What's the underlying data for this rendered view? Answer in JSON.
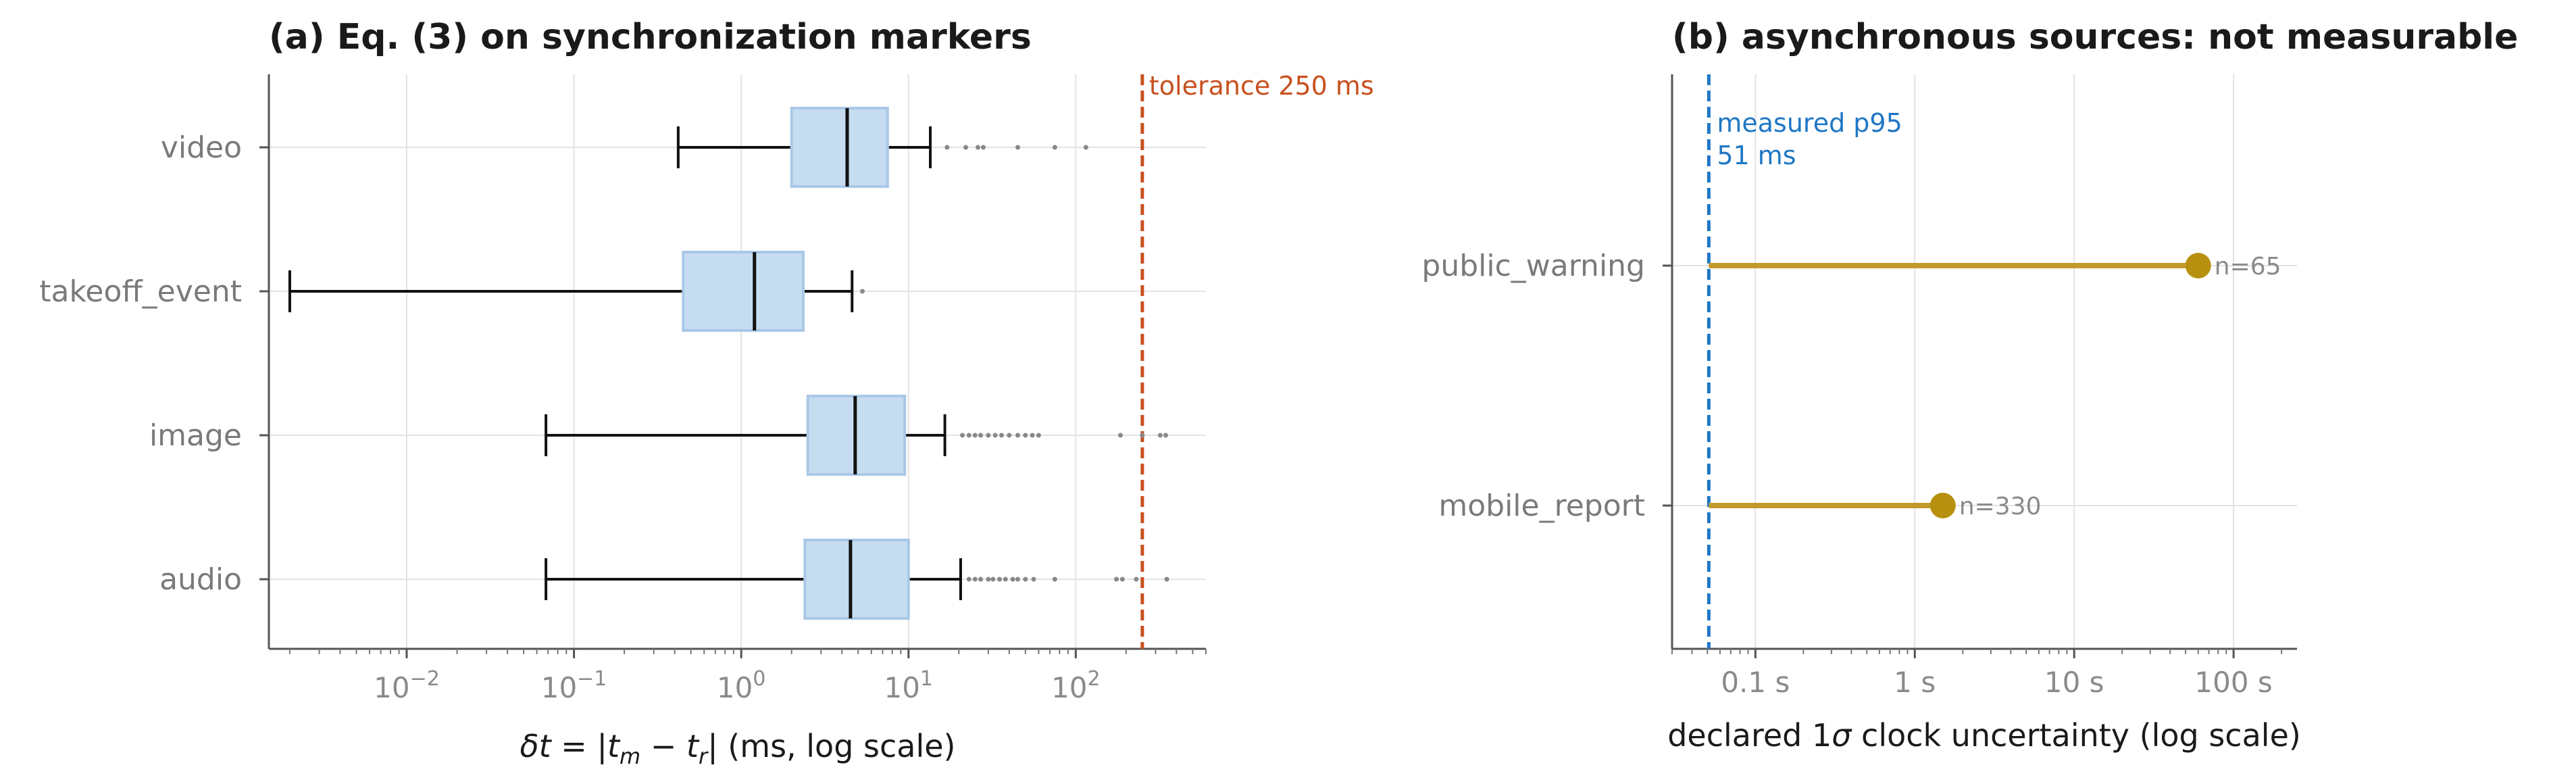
{
  "chart_data": [
    {
      "type": "box",
      "title": "(a) Eq. (3) on synchronization markers",
      "xlabel_parts": [
        "δt",
        " = |",
        "t",
        "m",
        " − ",
        "t",
        "r",
        "|  (ms, log scale)"
      ],
      "xscale": "log",
      "xlim": [
        0.0015,
        600
      ],
      "xticks": [
        {
          "value": 0.01,
          "mantissa": "10",
          "exp": "−2"
        },
        {
          "value": 0.1,
          "mantissa": "10",
          "exp": "−1"
        },
        {
          "value": 1,
          "mantissa": "10",
          "exp": "0"
        },
        {
          "value": 10,
          "mantissa": "10",
          "exp": "1"
        },
        {
          "value": 100,
          "mantissa": "10",
          "exp": "2"
        }
      ],
      "grid": true,
      "categories": [
        "video",
        "takeoff_event",
        "image",
        "audio"
      ],
      "boxes": [
        {
          "name": "video",
          "whislo": 0.42,
          "q1": 2.0,
          "median": 4.3,
          "q3": 7.5,
          "whishi": 13.5,
          "fliers": [
            17,
            22,
            26,
            28,
            45,
            75,
            115
          ]
        },
        {
          "name": "takeoff_event",
          "whislo": 0.002,
          "q1": 0.45,
          "median": 1.2,
          "q3": 2.35,
          "whishi": 4.6,
          "fliers": [
            5.3
          ]
        },
        {
          "name": "image",
          "whislo": 0.068,
          "q1": 2.5,
          "median": 4.8,
          "q3": 9.5,
          "whishi": 16.5,
          "fliers": [
            21,
            23,
            25,
            27,
            30,
            33,
            36,
            40,
            45,
            50,
            55,
            60,
            185,
            250,
            320,
            345
          ]
        },
        {
          "name": "audio",
          "whislo": 0.068,
          "q1": 2.4,
          "median": 4.5,
          "q3": 10.0,
          "whishi": 20.5,
          "fliers": [
            23,
            25,
            27,
            30,
            32,
            35,
            38,
            42,
            45,
            50,
            56,
            75,
            175,
            190,
            230,
            350
          ]
        }
      ],
      "reference_line": {
        "x": 250,
        "label": "tolerance 250 ms",
        "color": "#c8501e"
      },
      "box_color": "#c6dcf0"
    },
    {
      "type": "dot_line",
      "title": "(b) asynchronous sources: not measurable",
      "xlabel_parts": [
        "declared 1",
        "σ",
        " clock uncertainty (log scale)"
      ],
      "xscale": "log",
      "xlim": [
        0.03,
        250
      ],
      "xticks": [
        {
          "value": 0.1,
          "label": "0.1 s"
        },
        {
          "value": 1,
          "label": "1 s"
        },
        {
          "value": 10,
          "label": "10 s"
        },
        {
          "value": 100,
          "label": "100 s"
        }
      ],
      "grid": true,
      "categories": [
        "public_warning",
        "mobile_report"
      ],
      "series": [
        {
          "name": "public_warning",
          "start": 0.051,
          "value": 60,
          "n_label": "n=65"
        },
        {
          "name": "mobile_report",
          "start": 0.051,
          "value": 1.5,
          "n_label": "n=330"
        }
      ],
      "reference_line": {
        "x": 0.051,
        "label_lines": [
          "measured p95",
          "51 ms"
        ],
        "color": "#1f77c4"
      },
      "line_color": "#c19a2e",
      "dot_color": "#b8900f"
    }
  ]
}
